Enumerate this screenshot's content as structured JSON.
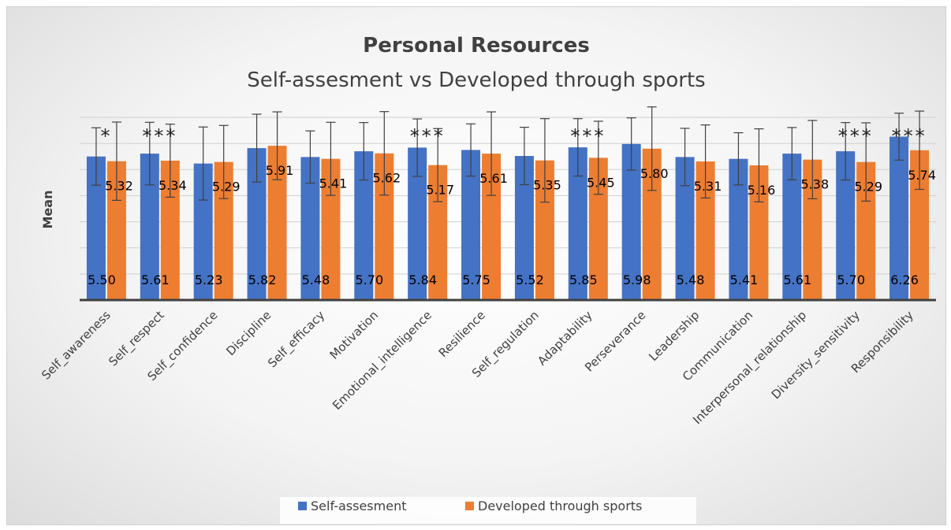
{
  "chart_data": {
    "type": "bar",
    "title": "Personal Resources",
    "subtitle": "Self-assesment vs Developed through sports",
    "ylabel": "Mean",
    "xlabel": "",
    "ylim": [
      0,
      7
    ],
    "grid": true,
    "legend_position": "bottom",
    "categories": [
      "Self_awareness",
      "Self_respect",
      "Self_confidence",
      "Discipline",
      "Self_efficacy",
      "Motivation",
      "Emotional_intelligence",
      "Resilience",
      "Self_regulation",
      "Adaptability",
      "Perseverance",
      "Leadership",
      "Communication",
      "Interpersonal_relationship",
      "Diversity_sensitivity",
      "Responsibility"
    ],
    "series": [
      {
        "name": "Self-assesment",
        "color": "#4472C4",
        "values": [
          5.5,
          5.61,
          5.23,
          5.82,
          5.48,
          5.7,
          5.84,
          5.75,
          5.52,
          5.85,
          5.98,
          5.48,
          5.41,
          5.61,
          5.7,
          6.26
        ],
        "labels": [
          "5.50",
          "5.61",
          "5.23",
          "5.82",
          "5.48",
          "5.70",
          "5.84",
          "5.75",
          "5.52",
          "5.85",
          "5.98",
          "5.48",
          "5.41",
          "5.61",
          "5.70",
          "6.26"
        ],
        "error": [
          1.1,
          1.2,
          1.4,
          1.3,
          1.0,
          1.1,
          1.1,
          1.0,
          1.1,
          1.1,
          1.0,
          1.1,
          1.0,
          1.0,
          1.1,
          0.9
        ]
      },
      {
        "name": "Developed through sports",
        "color": "#ED7D31",
        "values": [
          5.32,
          5.34,
          5.29,
          5.91,
          5.41,
          5.62,
          5.17,
          5.61,
          5.35,
          5.45,
          5.8,
          5.31,
          5.16,
          5.38,
          5.29,
          5.74
        ],
        "labels": [
          "5.32",
          "5.34",
          "5.29",
          "5.91",
          "5.41",
          "5.62",
          "5.17",
          "5.61",
          "5.35",
          "5.45",
          "5.80",
          "5.31",
          "5.16",
          "5.38",
          "5.29",
          "5.74"
        ],
        "error": [
          1.5,
          1.4,
          1.4,
          1.3,
          1.4,
          1.6,
          1.4,
          1.6,
          1.6,
          1.4,
          1.6,
          1.4,
          1.4,
          1.5,
          1.5,
          1.5
        ]
      }
    ],
    "annotations": [
      "*",
      "***",
      "",
      "",
      "",
      "",
      "***",
      "",
      "",
      "***",
      "",
      "",
      "",
      "",
      "***",
      "***"
    ]
  }
}
